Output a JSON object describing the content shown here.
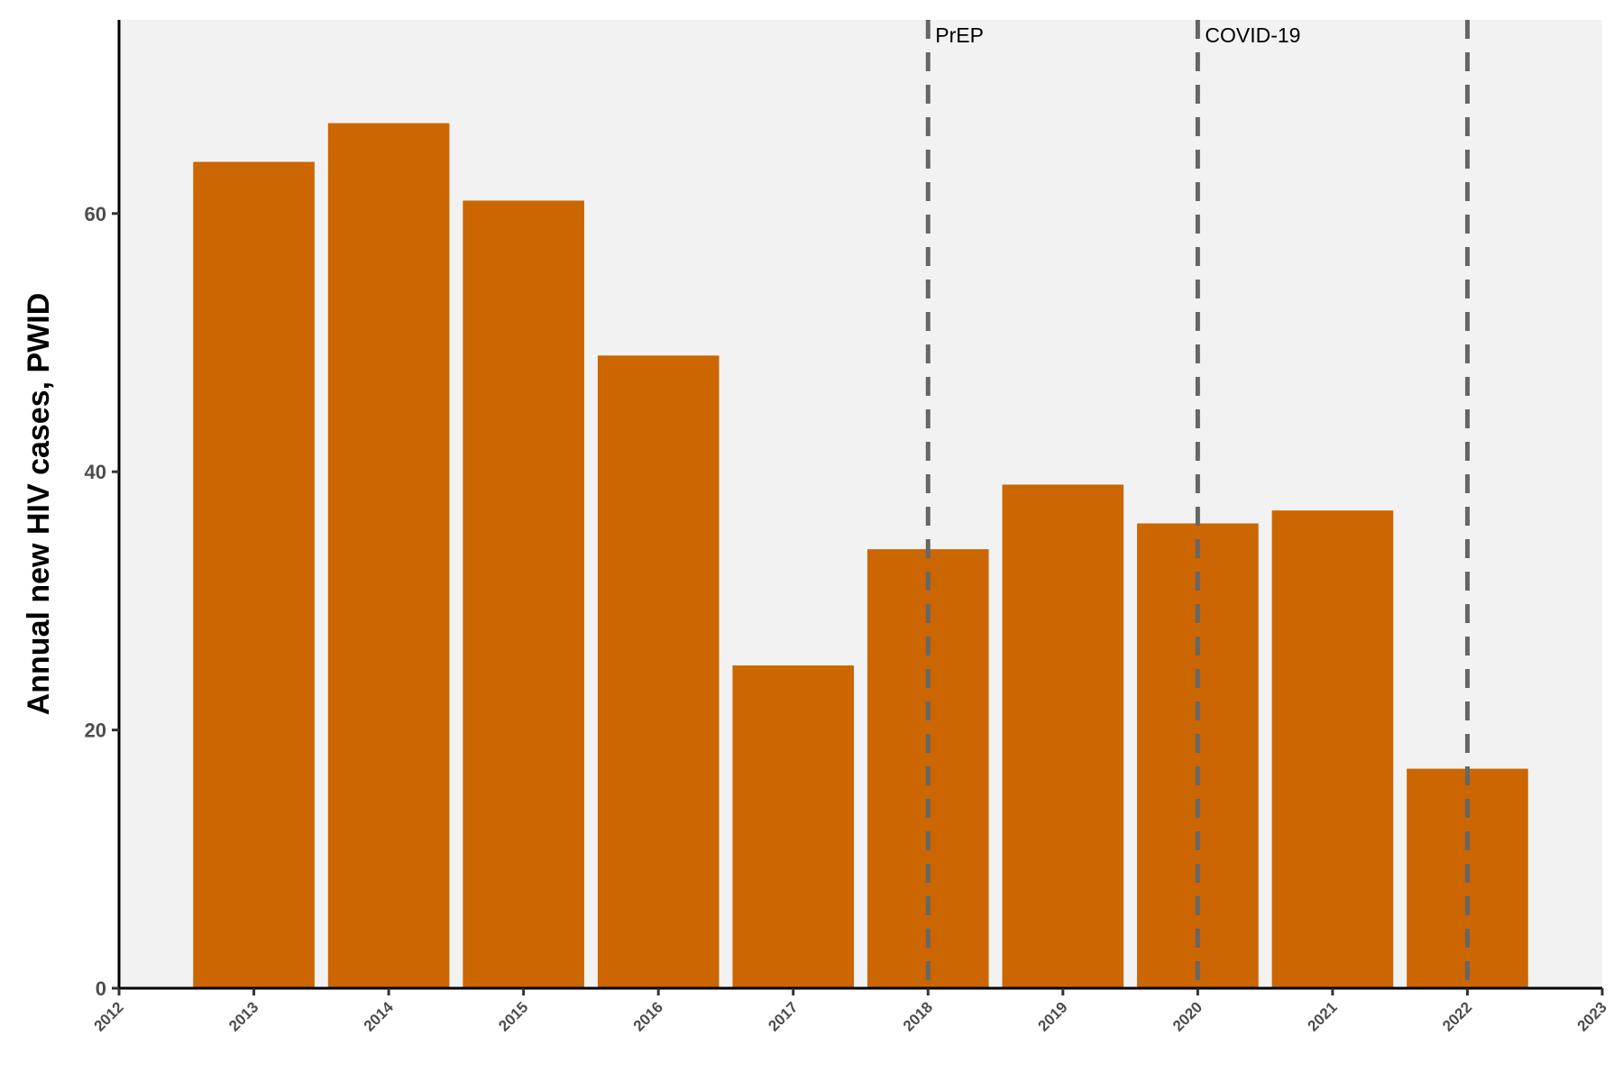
{
  "chart_data": {
    "type": "bar",
    "ylabel": "Annual new HIV cases, PWID",
    "xlabel": "",
    "x": [
      2013,
      2014,
      2015,
      2016,
      2017,
      2018,
      2019,
      2020,
      2021,
      2022
    ],
    "values": [
      64,
      67,
      61,
      49,
      25,
      34,
      39,
      36,
      37,
      17
    ],
    "xlim": [
      2012,
      2023
    ],
    "ylim": [
      0,
      75
    ],
    "x_ticks": [
      "2012",
      "2013",
      "2014",
      "2015",
      "2016",
      "2017",
      "2018",
      "2019",
      "2020",
      "2021",
      "2022",
      "2023"
    ],
    "y_ticks": [
      0,
      20,
      40,
      60
    ],
    "bar_color": "#CC6600",
    "panel_color": "#F2F2F2",
    "grid": false,
    "vlines": [
      {
        "x": 2018,
        "label": "PrEP"
      },
      {
        "x": 2020,
        "label": "COVID-19"
      },
      {
        "x": 2022,
        "label": ""
      }
    ]
  }
}
